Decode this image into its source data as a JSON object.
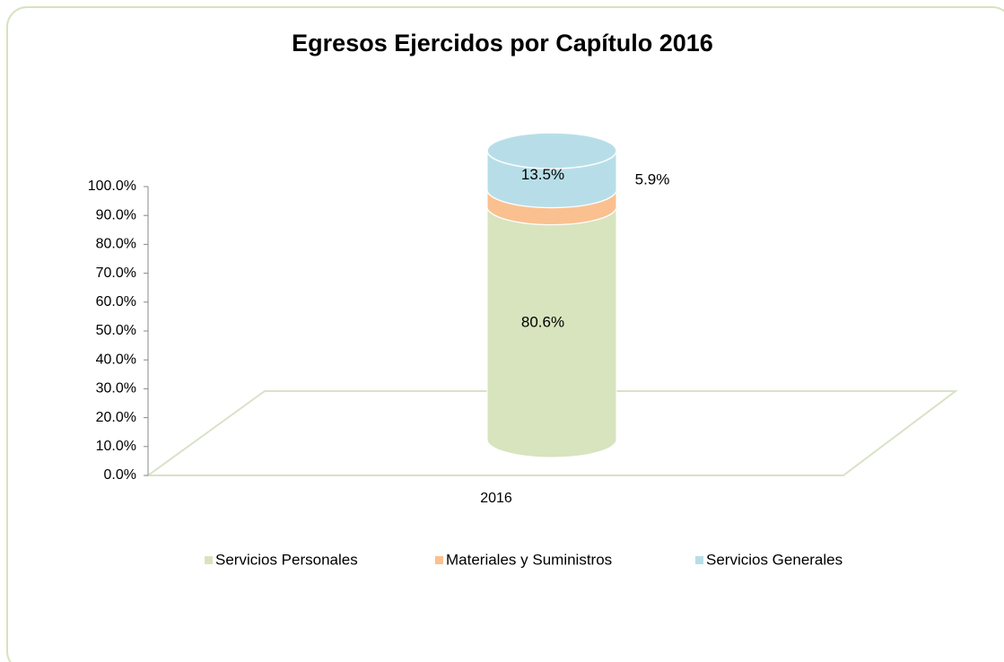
{
  "chart_data": {
    "type": "bar",
    "stacked": true,
    "title": "Egresos  Ejercidos  por Capítulo 2016",
    "categories": [
      "2016"
    ],
    "series": [
      {
        "name": "Servicios Personales",
        "color": "#d7e4bd",
        "values": [
          80.6
        ],
        "value_labels": [
          "80.6%"
        ]
      },
      {
        "name": "Materiales y Suministros",
        "color": "#fac090",
        "values": [
          5.9
        ],
        "value_labels": [
          "5.9%"
        ]
      },
      {
        "name": "Servicios Generales",
        "color": "#b7dee8",
        "values": [
          13.5
        ],
        "value_labels": [
          "13.5%"
        ]
      }
    ],
    "ylim": [
      0,
      100
    ],
    "yticks": [
      {
        "value": 0,
        "label": "0.0%"
      },
      {
        "value": 10,
        "label": "10.0%"
      },
      {
        "value": 20,
        "label": "20.0%"
      },
      {
        "value": 30,
        "label": "30.0%"
      },
      {
        "value": 40,
        "label": "40.0%"
      },
      {
        "value": 50,
        "label": "50.0%"
      },
      {
        "value": 60,
        "label": "60.0%"
      },
      {
        "value": 70,
        "label": "70.0%"
      },
      {
        "value": 80,
        "label": "80.0%"
      },
      {
        "value": 90,
        "label": "90.0%"
      },
      {
        "value": 100,
        "label": "100.0%"
      }
    ],
    "legend": "bottom"
  }
}
